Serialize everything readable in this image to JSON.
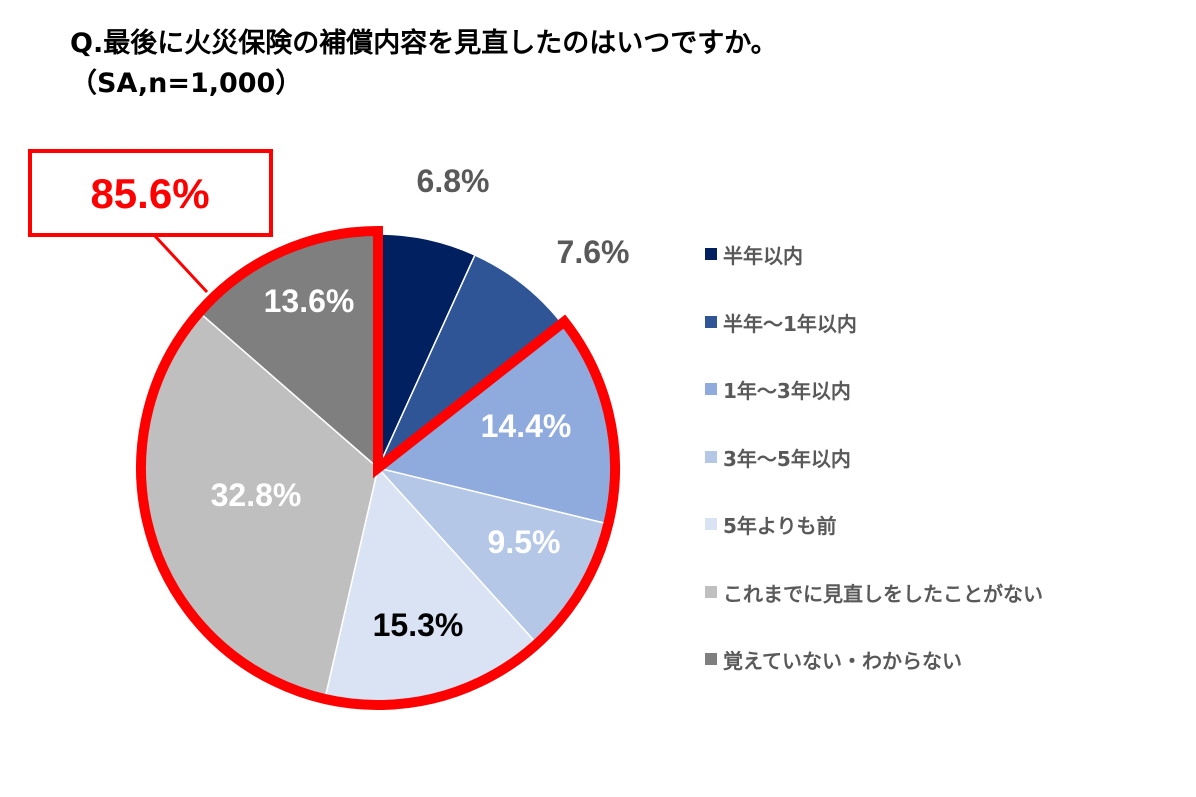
{
  "title": "Q.最後に火災保険の補償内容を見直したのはいつですか。",
  "subtitle": "（SA,n=1,000）",
  "callout": {
    "label": "85.6%",
    "color": "#FF0000"
  },
  "chart_data": {
    "type": "pie",
    "start": "12 o'clock, clockwise",
    "legend_position": "right",
    "categories": [
      "半年以内",
      "半年～1年以内",
      "1年～3年以内",
      "3年～5年以内",
      "5年よりも前",
      "これまでに見直しをしたことがない",
      "覚えていない・わからない"
    ],
    "values": [
      6.8,
      7.6,
      14.4,
      9.5,
      15.3,
      32.8,
      13.6
    ],
    "labels": [
      "6.8%",
      "7.6%",
      "14.4%",
      "9.5%",
      "15.3%",
      "32.8%",
      "13.6%"
    ],
    "colors": [
      "#002060",
      "#2F5597",
      "#8FAADC",
      "#B4C7E7",
      "#DAE3F3",
      "#BFBFBF",
      "#7F7F7F"
    ],
    "label_colors": [
      "#595959",
      "#595959",
      "#FFFFFF",
      "#FFFFFF",
      "#000000",
      "#FFFFFF",
      "#FFFFFF"
    ],
    "highlight": {
      "from_index": 2,
      "to_index": 6,
      "total": "85.6%",
      "outline_color": "#FF0000"
    }
  }
}
